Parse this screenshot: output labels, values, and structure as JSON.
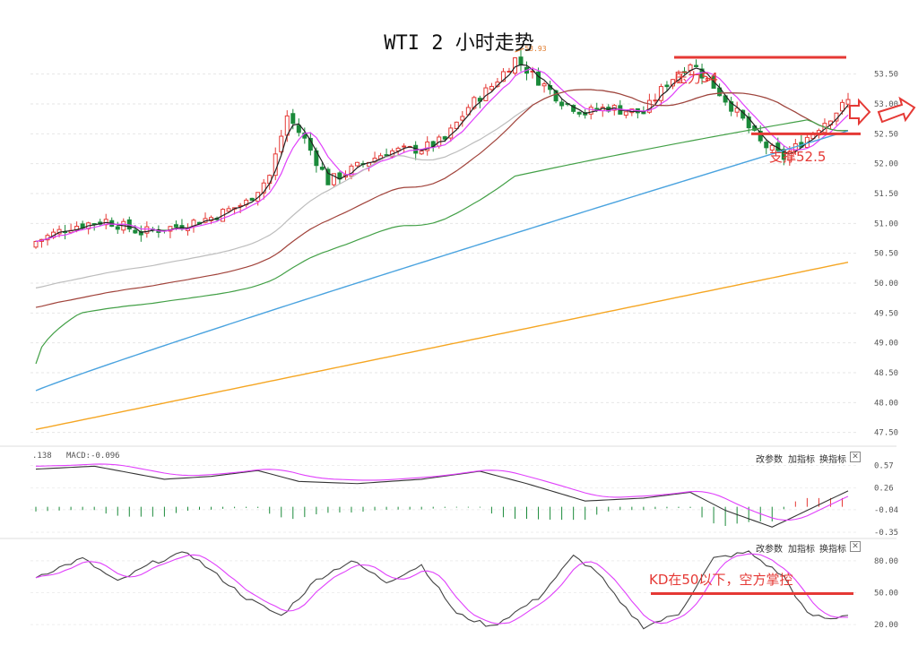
{
  "title": "WTI 2 小时走势",
  "annotations": {
    "resistance": "压力54",
    "support": "支撑52.5",
    "kd_note": "KD在50以下，空方掌控"
  },
  "panel_buttons": [
    "改参数",
    "加指标",
    "换指标"
  ],
  "close_glyph": "✕",
  "macd_header": {
    "prefix": ".138",
    "label": "MACD:-0.096"
  },
  "max_label": "53.93",
  "colors": {
    "up": "#e53935",
    "down": "#1b8a3a",
    "ma_short": "#222222",
    "ma_pink": "#e040fb",
    "ma_grey": "#bdbdbd",
    "ma_brown": "#a1433b",
    "ma_green": "#43a047",
    "ma_blue": "#4aa3df",
    "ma_orange": "#f5a623",
    "annotation": "#e53935"
  },
  "chart_data": [
    {
      "type": "candlestick",
      "title": "WTI 2 小时走势",
      "ylim": [
        47.3,
        54.05
      ],
      "y_ticks": [
        "53.50",
        "53.00",
        "52.50",
        "52.00",
        "51.50",
        "51.00",
        "50.50",
        "50.00",
        "49.50",
        "49.00",
        "48.50",
        "48.00",
        "47.50"
      ],
      "resistance_level": 54,
      "support_level": 52.5,
      "max_marker": 53.93,
      "moving_averages": [
        {
          "color": "ma_blue",
          "start": 48.2,
          "end": 52.55
        },
        {
          "color": "ma_orange",
          "start": 47.55,
          "end": 50.35
        }
      ]
    },
    {
      "type": "macd",
      "y_ticks": [
        "0.57",
        "0.26",
        "-0.04",
        "-0.35"
      ],
      "ylim": [
        -0.4,
        0.7
      ],
      "macd_value": -0.096
    },
    {
      "type": "kd",
      "y_ticks": [
        "80.00",
        "50.00",
        "20.00"
      ],
      "ylim": [
        15,
        95
      ],
      "threshold": 50
    }
  ]
}
